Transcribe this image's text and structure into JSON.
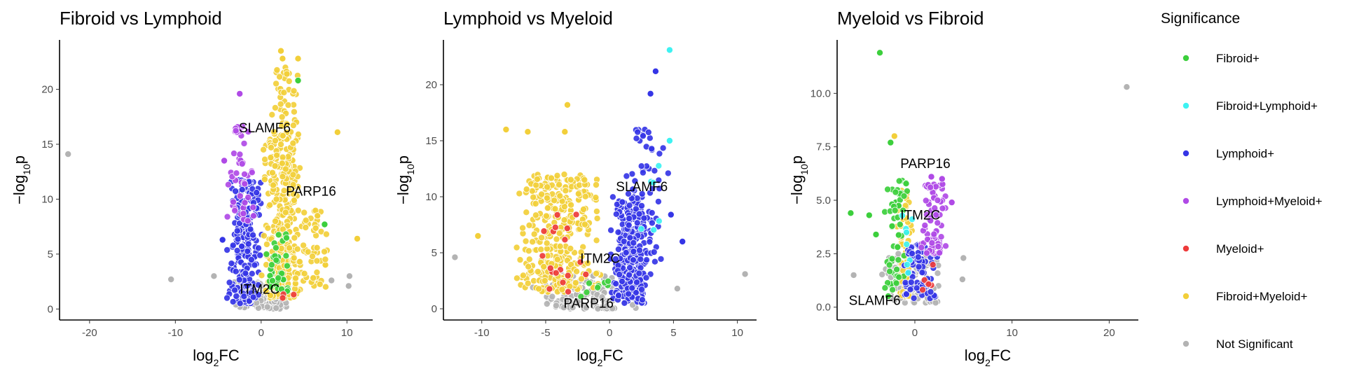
{
  "legend": {
    "title": "Significance",
    "items": [
      {
        "key": "fib",
        "label": "Fibroid+",
        "color": "#3ccf3c"
      },
      {
        "key": "fl",
        "label": "Fibroid+Lymphoid+",
        "color": "#3ef2f2"
      },
      {
        "key": "lym",
        "label": "Lymphoid+",
        "color": "#3535e6"
      },
      {
        "key": "lm",
        "label": "Lymphoid+Myeloid+",
        "color": "#b04ae6"
      },
      {
        "key": "mye",
        "label": "Myeloid+",
        "color": "#ee3b3b"
      },
      {
        "key": "fm",
        "label": "Fibroid+Myeloid+",
        "color": "#f2cf3a"
      },
      {
        "key": "ns",
        "label": "Not Significant",
        "color": "#b3b3b3"
      }
    ]
  },
  "chart_data": [
    {
      "type": "scatter",
      "title": "Fibroid vs Lymphoid",
      "xlabel": "log2FC",
      "ylabel": "-log10p",
      "xlim": [
        -23.5,
        13
      ],
      "ylim": [
        -1,
        24.5
      ],
      "xticks": [
        -20,
        -10,
        0,
        10
      ],
      "xtick_labels": [
        "-20",
        "-10",
        "0",
        "10"
      ],
      "yticks": [
        0,
        5,
        10,
        15,
        20
      ],
      "ytick_labels": [
        "0",
        "5",
        "10",
        "15",
        "20"
      ],
      "clouds": [
        {
          "group": "ns",
          "n": 130,
          "xr": [
            -3.5,
            4
          ],
          "yr": [
            0,
            2.5
          ]
        },
        {
          "group": "lym",
          "n": 230,
          "xr": [
            -4,
            0.2
          ],
          "yr": [
            0.5,
            12
          ]
        },
        {
          "group": "lm",
          "n": 45,
          "xr": [
            -4.2,
            -0.5
          ],
          "yr": [
            8,
            17
          ]
        },
        {
          "group": "fm",
          "n": 300,
          "xr": [
            0,
            5
          ],
          "yr": [
            1,
            16
          ]
        },
        {
          "group": "fm",
          "n": 70,
          "xr": [
            1,
            4.5
          ],
          "yr": [
            12,
            22
          ]
        },
        {
          "group": "fm",
          "n": 55,
          "xr": [
            4,
            8
          ],
          "yr": [
            2,
            9
          ]
        },
        {
          "group": "fib",
          "n": 40,
          "xr": [
            0,
            3.5
          ],
          "yr": [
            1.5,
            7
          ]
        },
        {
          "group": "mye",
          "n": 3,
          "xr": [
            1,
            4
          ],
          "yr": [
            1,
            2
          ]
        }
      ],
      "points": [
        {
          "x": -22.5,
          "y": 14.1,
          "g": "ns"
        },
        {
          "x": -10.5,
          "y": 2.7,
          "g": "ns"
        },
        {
          "x": -5.5,
          "y": 3.0,
          "g": "ns"
        },
        {
          "x": 10.2,
          "y": 2.1,
          "g": "ns"
        },
        {
          "x": 10.3,
          "y": 3.0,
          "g": "ns"
        },
        {
          "x": 8.2,
          "y": 2.6,
          "g": "ns"
        },
        {
          "x": 2.3,
          "y": 23.5,
          "g": "fm"
        },
        {
          "x": 2.5,
          "y": 22.8,
          "g": "fm"
        },
        {
          "x": 4.3,
          "y": 22.8,
          "g": "fm"
        },
        {
          "x": 3.0,
          "y": 21.4,
          "g": "fm"
        },
        {
          "x": 4.3,
          "y": 20.8,
          "g": "fib"
        },
        {
          "x": 11.2,
          "y": 6.4,
          "g": "fm"
        },
        {
          "x": 8.9,
          "y": 16.1,
          "g": "fm"
        },
        {
          "x": 7.4,
          "y": 7.7,
          "g": "fib"
        },
        {
          "x": -2.5,
          "y": 19.6,
          "g": "lm"
        },
        {
          "x": -4.5,
          "y": 6.3,
          "g": "lym"
        },
        {
          "x": -4.3,
          "y": 13.5,
          "g": "lm"
        }
      ],
      "labels": [
        {
          "text": "SLAMF6",
          "x": -2.6,
          "y": 16.1
        },
        {
          "text": "PARP16",
          "x": 2.9,
          "y": 10.3
        },
        {
          "text": "ITM2C",
          "x": -2.5,
          "y": 1.4
        }
      ]
    },
    {
      "type": "scatter",
      "title": "Lymphoid vs Myeloid",
      "xlabel": "log2FC",
      "ylabel": "-log10p",
      "xlim": [
        -13,
        11.5
      ],
      "ylim": [
        -1,
        24
      ],
      "xticks": [
        -10,
        -5,
        0,
        5,
        10
      ],
      "xtick_labels": [
        "-10",
        "-5",
        "0",
        "5",
        "10"
      ],
      "yticks": [
        0,
        5,
        10,
        15,
        20
      ],
      "yticks_labels": [],
      "ytick_labels": [
        "0",
        "5",
        "10",
        "15",
        "20"
      ],
      "clouds": [
        {
          "group": "ns",
          "n": 140,
          "xr": [
            -7,
            3
          ],
          "yr": [
            0,
            3
          ]
        },
        {
          "group": "fm",
          "n": 360,
          "xr": [
            -7.5,
            -0.3
          ],
          "yr": [
            1.5,
            12
          ]
        },
        {
          "group": "lym",
          "n": 250,
          "xr": [
            0,
            3.3
          ],
          "yr": [
            0.5,
            10
          ]
        },
        {
          "group": "lym",
          "n": 60,
          "xr": [
            1,
            4.8
          ],
          "yr": [
            4,
            16
          ]
        },
        {
          "group": "mye",
          "n": 18,
          "xr": [
            -6,
            -1
          ],
          "yr": [
            1.5,
            9
          ]
        },
        {
          "group": "fib",
          "n": 8,
          "xr": [
            -2.5,
            0.5
          ],
          "yr": [
            1,
            3
          ]
        },
        {
          "group": "fl",
          "n": 6,
          "xr": [
            2,
            4.5
          ],
          "yr": [
            7,
            13
          ]
        }
      ],
      "points": [
        {
          "x": 4.7,
          "y": 23.1,
          "g": "fl"
        },
        {
          "x": 3.6,
          "y": 21.2,
          "g": "lym"
        },
        {
          "x": 3.2,
          "y": 19.2,
          "g": "lym"
        },
        {
          "x": 4.7,
          "y": 15.0,
          "g": "fl"
        },
        {
          "x": 5.7,
          "y": 6.0,
          "g": "lym"
        },
        {
          "x": 4.8,
          "y": 8.4,
          "g": "lym"
        },
        {
          "x": -3.3,
          "y": 18.2,
          "g": "fm"
        },
        {
          "x": -8.1,
          "y": 16.0,
          "g": "fm"
        },
        {
          "x": -6.4,
          "y": 15.8,
          "g": "fm"
        },
        {
          "x": -3.5,
          "y": 15.8,
          "g": "fm"
        },
        {
          "x": -10.3,
          "y": 6.5,
          "g": "fm"
        },
        {
          "x": -12.1,
          "y": 4.6,
          "g": "ns"
        },
        {
          "x": 10.6,
          "y": 3.1,
          "g": "ns"
        },
        {
          "x": 5.3,
          "y": 1.8,
          "g": "ns"
        }
      ],
      "labels": [
        {
          "text": "SLAMF6",
          "x": 0.5,
          "y": 10.5
        },
        {
          "text": "ITM2C",
          "x": -2.3,
          "y": 4.1
        },
        {
          "text": "PARP16",
          "x": -3.6,
          "y": 0.1
        }
      ]
    },
    {
      "type": "scatter",
      "title": "Myeloid vs Fibroid",
      "xlabel": "log2FC",
      "ylabel": "-log10p",
      "xlim": [
        -8,
        23
      ],
      "ylim": [
        -0.6,
        12.5
      ],
      "xticks": [
        0,
        10,
        20
      ],
      "xtick_labels": [
        "0",
        "10",
        "20"
      ],
      "yticks": [
        0,
        2.5,
        5,
        7.5,
        10
      ],
      "ytick_labels": [
        "0.0",
        "2.5",
        "5.0",
        "7.5",
        "10.0"
      ],
      "clouds": [
        {
          "group": "ns",
          "n": 120,
          "xr": [
            -3.5,
            3
          ],
          "yr": [
            0.2,
            2.5
          ]
        },
        {
          "group": "fm",
          "n": 55,
          "xr": [
            -2,
            0
          ],
          "yr": [
            0.5,
            5.5
          ]
        },
        {
          "group": "fib",
          "n": 60,
          "xr": [
            -3.5,
            -0.5
          ],
          "yr": [
            0.5,
            6
          ]
        },
        {
          "group": "lym",
          "n": 70,
          "xr": [
            -1.5,
            2.5
          ],
          "yr": [
            0.4,
            3
          ]
        },
        {
          "group": "lm",
          "n": 85,
          "xr": [
            0.3,
            3.5
          ],
          "yr": [
            2.5,
            5.8
          ]
        },
        {
          "group": "mye",
          "n": 6,
          "xr": [
            -1,
            3
          ],
          "yr": [
            0.5,
            2
          ]
        },
        {
          "group": "fl",
          "n": 8,
          "xr": [
            -2,
            0.5
          ],
          "yr": [
            1.5,
            4.5
          ]
        }
      ],
      "points": [
        {
          "x": -3.6,
          "y": 11.9,
          "g": "fib"
        },
        {
          "x": 21.8,
          "y": 10.3,
          "g": "ns"
        },
        {
          "x": -2.1,
          "y": 8.0,
          "g": "fm"
        },
        {
          "x": -2.5,
          "y": 7.7,
          "g": "fib"
        },
        {
          "x": -6.6,
          "y": 4.4,
          "g": "fib"
        },
        {
          "x": -4.7,
          "y": 4.3,
          "g": "fib"
        },
        {
          "x": -4.0,
          "y": 3.4,
          "g": "fib"
        },
        {
          "x": -6.3,
          "y": 1.5,
          "g": "ns"
        },
        {
          "x": 5.0,
          "y": 2.3,
          "g": "ns"
        },
        {
          "x": 4.9,
          "y": 1.3,
          "g": "ns"
        },
        {
          "x": 2.8,
          "y": 6.0,
          "g": "lm"
        },
        {
          "x": 3.8,
          "y": 4.9,
          "g": "lm"
        },
        {
          "x": 1.7,
          "y": 6.1,
          "g": "lm"
        }
      ],
      "labels": [
        {
          "text": "PARP16",
          "x": -1.5,
          "y": 6.5
        },
        {
          "text": "ITM2C",
          "x": -1.5,
          "y": 4.1
        },
        {
          "text": "SLAMF6",
          "x": -6.8,
          "y": 0.1
        }
      ]
    }
  ]
}
